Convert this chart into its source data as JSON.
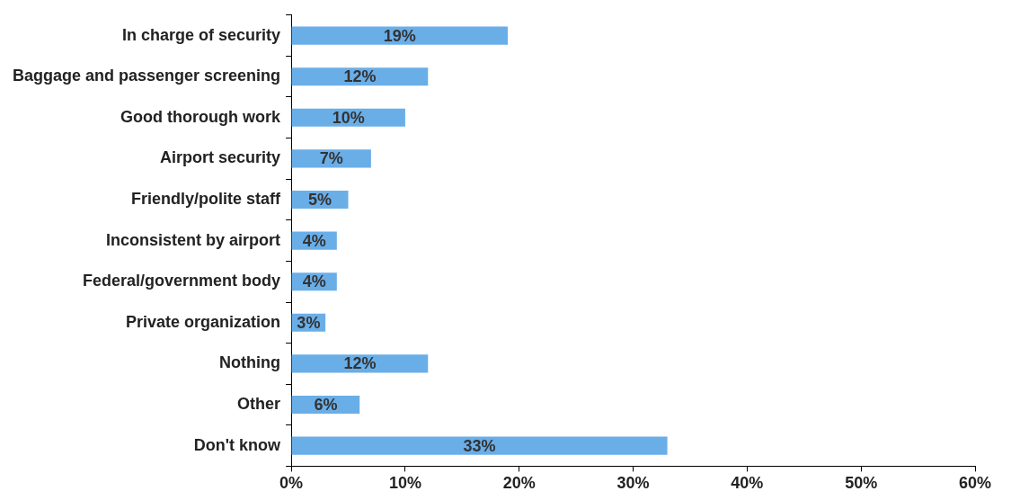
{
  "chart_data": {
    "type": "bar",
    "orientation": "horizontal",
    "categories": [
      "In charge of security",
      "Baggage and passenger screening",
      "Good thorough work",
      "Airport security",
      "Friendly/polite staff",
      "Inconsistent by airport",
      "Federal/government body",
      "Private organization",
      "Nothing",
      "Other",
      "Don't know"
    ],
    "values": [
      19,
      12,
      10,
      7,
      5,
      4,
      4,
      3,
      12,
      6,
      33
    ],
    "value_labels": [
      "19%",
      "12%",
      "10%",
      "7%",
      "5%",
      "4%",
      "4%",
      "3%",
      "12%",
      "6%",
      "33%"
    ],
    "color": "#6aaee8",
    "xlim": [
      0,
      60
    ],
    "xticks": [
      {
        "value": 0,
        "label": "0%"
      },
      {
        "value": 10,
        "label": "10%"
      },
      {
        "value": 20,
        "label": "20%"
      },
      {
        "value": 30,
        "label": "30%"
      },
      {
        "value": 40,
        "label": "40%"
      },
      {
        "value": 50,
        "label": "50%"
      },
      {
        "value": 60,
        "label": "60%"
      }
    ],
    "grid": false,
    "legend": false
  }
}
